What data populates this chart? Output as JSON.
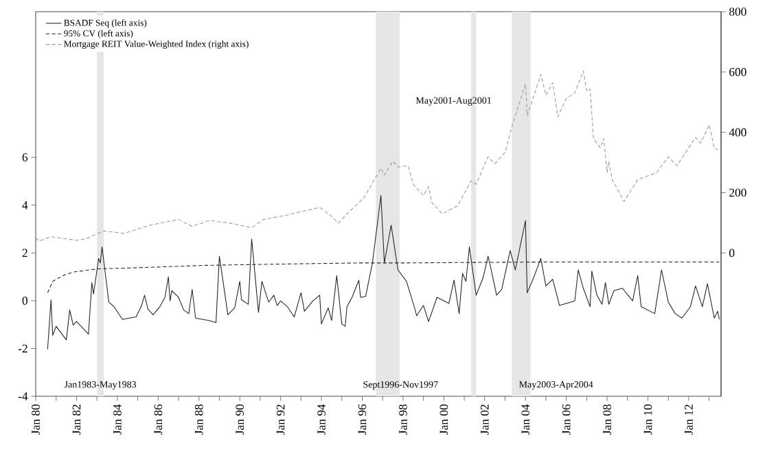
{
  "chart_data": {
    "type": "line",
    "series": [
      {
        "name": "BSADF Seq (left axis)",
        "color": "#222222",
        "line_style": "solid",
        "x": [
          "1980-08",
          "1980-10",
          "1980-11",
          "1981-01",
          "1981-07",
          "1981-09",
          "1981-11",
          "1982-01",
          "1982-08",
          "1982-10",
          "1982-11",
          "1983-02",
          "1983-03",
          "1983-04",
          "1983-08",
          "1983-11",
          "1984-04",
          "1984-12",
          "1985-03",
          "1985-05",
          "1985-07",
          "1985-10",
          "1986-02",
          "1986-05",
          "1986-07",
          "1986-08",
          "1986-09",
          "1987-01",
          "1987-04",
          "1987-07",
          "1987-09",
          "1987-11",
          "1988-07",
          "1988-11",
          "1989-01",
          "1989-06",
          "1989-10",
          "1990-01",
          "1990-02",
          "1990-06",
          "1990-08",
          "1990-12",
          "1991-02",
          "1991-06",
          "1991-09",
          "1991-11",
          "1992-01",
          "1992-05",
          "1992-09",
          "1993-01",
          "1993-03",
          "1993-08",
          "1993-12",
          "1994-01",
          "1994-05",
          "1994-07",
          "1994-10",
          "1995-01",
          "1995-03",
          "1995-04",
          "1995-07",
          "1995-11",
          "1995-12",
          "1996-03",
          "1996-07",
          "1996-12",
          "1997-02",
          "1997-06",
          "1997-10",
          "1998-03",
          "1998-08",
          "1998-09",
          "1999-01",
          "1999-04",
          "1999-09",
          "2000-04",
          "2000-07",
          "2000-10",
          "2000-12",
          "2001-02",
          "2001-04",
          "2001-08",
          "2001-12",
          "2002-03",
          "2002-05",
          "2002-08",
          "2002-11",
          "2003-04",
          "2003-07",
          "2004-01",
          "2004-02",
          "2004-06",
          "2004-10",
          "2005-01",
          "2005-05",
          "2005-09",
          "2006-06",
          "2006-08",
          "2006-11",
          "2007-03",
          "2007-04",
          "2007-07",
          "2007-10",
          "2007-12",
          "2008-02",
          "2008-05",
          "2008-10",
          "2009-04",
          "2009-07",
          "2009-09",
          "2010-05",
          "2010-09",
          "2011-01",
          "2011-05",
          "2011-09",
          "2012-02",
          "2012-05",
          "2012-09",
          "2012-12",
          "2013-04",
          "2013-06",
          "2013-07"
        ],
        "values": [
          -2.03,
          0.04,
          -1.45,
          -1.07,
          -1.64,
          -0.39,
          -1.02,
          -0.87,
          -1.4,
          0.76,
          0.28,
          1.77,
          1.58,
          2.25,
          -0.06,
          -0.25,
          -0.78,
          -0.68,
          -0.25,
          0.23,
          -0.35,
          -0.59,
          -0.25,
          0.14,
          1.0,
          -0.01,
          0.42,
          0.14,
          -0.39,
          -0.54,
          0.47,
          -0.73,
          -0.83,
          -0.92,
          1.86,
          -0.59,
          -0.3,
          0.81,
          0.04,
          -0.15,
          2.58,
          -0.49,
          0.81,
          -0.06,
          0.23,
          -0.2,
          -0.01,
          -0.25,
          -0.68,
          0.33,
          -0.44,
          -0.01,
          0.23,
          -0.97,
          -0.3,
          -0.83,
          1.05,
          -0.97,
          -1.07,
          -0.25,
          0.14,
          0.86,
          0.14,
          0.18,
          1.58,
          4.41,
          1.58,
          3.16,
          1.29,
          0.81,
          -0.35,
          -0.63,
          -0.2,
          -0.87,
          0.14,
          -0.11,
          0.86,
          -0.54,
          1.14,
          0.81,
          2.25,
          0.23,
          0.95,
          1.86,
          1.24,
          0.23,
          0.47,
          2.1,
          1.29,
          3.35,
          0.33,
          1.0,
          1.77,
          0.62,
          0.9,
          -0.2,
          -0.01,
          1.29,
          0.52,
          -0.25,
          1.24,
          0.23,
          -0.15,
          0.76,
          -0.15,
          0.42,
          0.52,
          -0.01,
          1.05,
          -0.25,
          -0.54,
          1.29,
          -0.06,
          -0.54,
          -0.73,
          -0.25,
          0.62,
          -0.25,
          0.71,
          -0.73,
          -0.44,
          -0.78
        ]
      },
      {
        "name": "95% CV (left axis)",
        "color": "#222222",
        "line_style": "dashed",
        "x": [
          "1980-08",
          "1980-11",
          "1981-05",
          "1981-11",
          "1983-01",
          "1985-01",
          "1988-05",
          "1991-10",
          "1995-11",
          "1998-01",
          "2001-01",
          "2005-01",
          "2009-01",
          "2013-07"
        ],
        "values": [
          0.33,
          0.81,
          1.05,
          1.2,
          1.33,
          1.38,
          1.48,
          1.53,
          1.58,
          1.58,
          1.6,
          1.62,
          1.62,
          1.62
        ]
      },
      {
        "name": "Mortgage REIT Value-Weighted Index (right axis)",
        "color": "#999999",
        "line_style": "dashed",
        "axis": "y2",
        "x": [
          "1980-01",
          "1980-03",
          "1980-10",
          "1982-01",
          "1982-06",
          "1983-05",
          "1984-05",
          "1985-08",
          "1987-01",
          "1987-09",
          "1988-07",
          "1989-07",
          "1990-08",
          "1991-03",
          "1992-05",
          "1993-01",
          "1993-12",
          "1994-06",
          "1994-11",
          "1995-04",
          "1996-02",
          "1996-12",
          "1997-02",
          "1997-07",
          "1997-10",
          "1998-04",
          "1998-07",
          "1999-01",
          "1999-04",
          "1999-06",
          "1999-12",
          "2000-09",
          "2001-05",
          "2001-08",
          "2002-03",
          "2002-07",
          "2003-01",
          "2003-05",
          "2004-01",
          "2004-02",
          "2004-07",
          "2004-10",
          "2005-01",
          "2005-05",
          "2005-08",
          "2006-01",
          "2006-06",
          "2006-11",
          "2007-01",
          "2007-03",
          "2007-05",
          "2007-09",
          "2007-11",
          "2008-01",
          "2008-02",
          "2008-04",
          "2008-11",
          "2009-07",
          "2010-06",
          "2011-01",
          "2011-06",
          "2012-05",
          "2012-08",
          "2013-01",
          "2013-04",
          "2013-06"
        ],
        "values": [
          50,
          39,
          54,
          42,
          46,
          73,
          65,
          92,
          111,
          88,
          108,
          99,
          84,
          111,
          126,
          137,
          151,
          126,
          99,
          130,
          183,
          281,
          258,
          304,
          285,
          289,
          228,
          190,
          220,
          167,
          130,
          156,
          239,
          228,
          319,
          296,
          334,
          418,
          561,
          455,
          539,
          592,
          523,
          565,
          452,
          512,
          531,
          603,
          535,
          543,
          380,
          349,
          380,
          266,
          304,
          243,
          171,
          243,
          266,
          319,
          289,
          383,
          364,
          425,
          349,
          342
        ]
      }
    ],
    "bands": [
      {
        "axis": "x",
        "from": "1983-01",
        "to": "1983-05",
        "label": "Jan1983-May1983",
        "color": "#e6e6e6"
      },
      {
        "axis": "x",
        "from": "1996-09",
        "to": "1997-11",
        "label": "Sept1996-Nov1997",
        "color": "#e6e6e6"
      },
      {
        "axis": "x",
        "from": "2001-05",
        "to": "2001-08",
        "label": "May2001-Aug2001",
        "color": "#e6e6e6"
      },
      {
        "axis": "x",
        "from": "2003-05",
        "to": "2004-04",
        "label": "May2003-Apr2004",
        "color": "#e6e6e6"
      }
    ],
    "legend": "top left",
    "xlim": [
      "1980-01",
      "2013-08"
    ],
    "xticks": [
      {
        "value": "1980-01",
        "label": "Jan 80"
      },
      {
        "value": "1981-01",
        "label": null
      },
      {
        "value": "1982-01",
        "label": "Jan 82"
      },
      {
        "value": "1983-01",
        "label": null
      },
      {
        "value": "1984-01",
        "label": "Jan 84"
      },
      {
        "value": "1985-01",
        "label": null
      },
      {
        "value": "1986-01",
        "label": "Jan 86"
      },
      {
        "value": "1987-01",
        "label": null
      },
      {
        "value": "1988-01",
        "label": "Jan 88"
      },
      {
        "value": "1989-01",
        "label": null
      },
      {
        "value": "1990-01",
        "label": "Jan 90"
      },
      {
        "value": "1991-01",
        "label": null
      },
      {
        "value": "1992-01",
        "label": "Jan 92"
      },
      {
        "value": "1993-01",
        "label": null
      },
      {
        "value": "1994-01",
        "label": "Jan 94"
      },
      {
        "value": "1995-01",
        "label": null
      },
      {
        "value": "1996-01",
        "label": "Jan 96"
      },
      {
        "value": "1997-01",
        "label": null
      },
      {
        "value": "1998-01",
        "label": "Jan 98"
      },
      {
        "value": "1999-01",
        "label": null
      },
      {
        "value": "2000-01",
        "label": "Jan 00"
      },
      {
        "value": "2001-01",
        "label": null
      },
      {
        "value": "2002-01",
        "label": "Jan 02"
      },
      {
        "value": "2003-01",
        "label": null
      },
      {
        "value": "2004-01",
        "label": "Jan 04"
      },
      {
        "value": "2005-01",
        "label": null
      },
      {
        "value": "2006-01",
        "label": "Jan 06"
      },
      {
        "value": "2007-01",
        "label": null
      },
      {
        "value": "2008-01",
        "label": "Jan 08"
      },
      {
        "value": "2009-01",
        "label": null
      },
      {
        "value": "2010-01",
        "label": "Jan 10"
      },
      {
        "value": "2011-01",
        "label": null
      },
      {
        "value": "2012-01",
        "label": "Jan 12"
      },
      {
        "value": "2013-01",
        "label": null
      }
    ],
    "ylim": [
      -4,
      12.1
    ],
    "yticks": [
      -4,
      -2,
      0,
      2,
      4,
      6
    ],
    "y2lim": [
      -475,
      800
    ],
    "y2ticks": [
      0,
      200,
      400,
      600,
      800
    ]
  }
}
